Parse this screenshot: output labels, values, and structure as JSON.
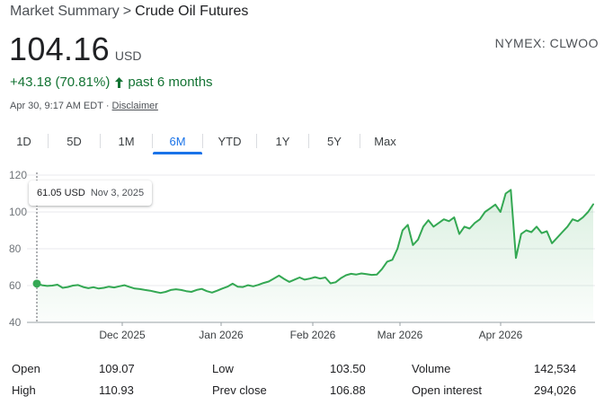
{
  "breadcrumb": {
    "parent": "Market Summary",
    "separator": ">",
    "current": "Crude Oil Futures"
  },
  "quote": {
    "price": "104.16",
    "currency": "USD",
    "exchange": "NYMEX: CLWOO",
    "change": "+43.18 (70.81%)",
    "change_period": "past 6 months",
    "timestamp": "Apr 30, 9:17 AM EDT",
    "bullet": "·",
    "disclaimer": "Disclaimer"
  },
  "tabs": [
    {
      "label": "1D",
      "active": false
    },
    {
      "label": "5D",
      "active": false
    },
    {
      "label": "1M",
      "active": false
    },
    {
      "label": "6M",
      "active": true
    },
    {
      "label": "YTD",
      "active": false
    },
    {
      "label": "1Y",
      "active": false
    },
    {
      "label": "5Y",
      "active": false
    },
    {
      "label": "Max",
      "active": false
    }
  ],
  "tooltip": {
    "value": "61.05 USD",
    "date": "Nov 3, 2025"
  },
  "chart_data": {
    "type": "area",
    "x_tick_labels": [
      "Dec 2025",
      "Jan 2026",
      "Feb 2026",
      "Mar 2026",
      "Apr 2026"
    ],
    "y_ticks": [
      40,
      60,
      80,
      100,
      120
    ],
    "ylim": [
      40,
      120
    ],
    "xlabel": "",
    "ylabel": "",
    "grid": true,
    "series": [
      {
        "values": [
          61.05,
          60.2,
          59.8,
          60.0,
          60.5,
          58.8,
          59.2,
          60.0,
          60.3,
          59.2,
          58.6,
          59.1,
          58.4,
          58.8,
          59.4,
          59.0,
          59.6,
          60.2,
          59.2,
          58.4,
          58.1,
          57.6,
          57.2,
          56.6,
          56.0,
          56.6,
          57.6,
          58.0,
          57.6,
          57.0,
          56.6,
          57.6,
          58.2,
          57.0,
          56.2,
          57.2,
          58.4,
          59.4,
          61.0,
          59.4,
          59.2,
          60.2,
          59.6,
          60.4,
          61.4,
          62.2,
          63.8,
          65.4,
          63.6,
          62.0,
          63.2,
          64.4,
          63.2,
          63.8,
          64.6,
          63.8,
          64.4,
          61.2,
          61.8,
          64.0,
          65.6,
          66.4,
          66.0,
          66.6,
          66.2,
          65.8,
          66.0,
          69.0,
          73.0,
          74.0,
          80.0,
          90.0,
          93.0,
          82.0,
          85.0,
          92.0,
          95.5,
          92.0,
          94.0,
          96.0,
          95.0,
          97.0,
          88.0,
          92.0,
          91.0,
          94.0,
          96.0,
          100.0,
          102.0,
          104.0,
          100.0,
          110.0,
          112.0,
          75.0,
          88.0,
          90.0,
          89.0,
          92.0,
          88.5,
          89.5,
          83.0,
          86.0,
          89.0,
          92.0,
          96.0,
          95.0,
          97.0,
          100.0,
          104.16
        ],
        "color": "#34a853",
        "fill": "#e6f4ea"
      }
    ]
  },
  "stats": {
    "col1": [
      {
        "label": "Open",
        "value": "109.07"
      },
      {
        "label": "High",
        "value": "110.93"
      }
    ],
    "col2": [
      {
        "label": "Low",
        "value": "103.50"
      },
      {
        "label": "Prev close",
        "value": "106.88"
      }
    ],
    "col3": [
      {
        "label": "Volume",
        "value": "142,534"
      },
      {
        "label": "Open interest",
        "value": "294,026"
      }
    ]
  },
  "colors": {
    "positive": "#137333",
    "accent": "#1a73e8",
    "line": "#34a853"
  }
}
